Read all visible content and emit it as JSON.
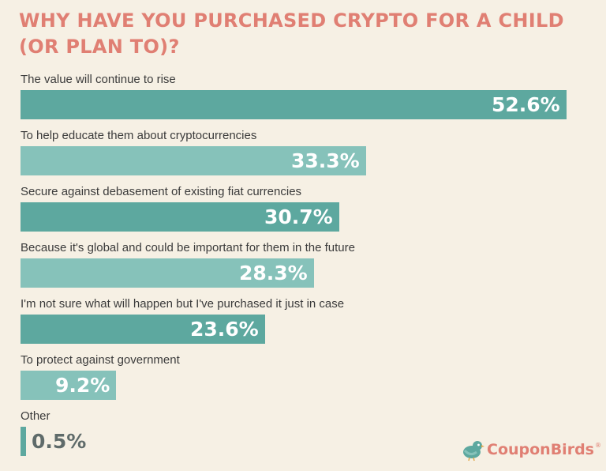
{
  "chart_data": {
    "type": "bar",
    "orientation": "horizontal",
    "title": "WHY HAVE YOU PURCHASED CRYPTO FOR A CHILD (OR PLAN TO)?",
    "categories": [
      "The value will continue to rise",
      "To help educate them about cryptocurrencies",
      "Secure against debasement of existing fiat currencies",
      "Because it's global and could be important for them in the future",
      "I'm not sure what will happen but I've purchased it just in case",
      "To protect against government",
      "Other"
    ],
    "values": [
      52.6,
      33.3,
      30.7,
      28.3,
      23.6,
      9.2,
      0.5
    ],
    "value_labels": [
      "52.6%",
      "33.3%",
      "30.7%",
      "28.3%",
      "23.6%",
      "9.2%",
      "0.5%"
    ],
    "xlim": [
      0,
      52.6
    ],
    "colors": [
      "#5da89f",
      "#86c2ba",
      "#5da89f",
      "#86c2ba",
      "#5da89f",
      "#86c2ba",
      "#5da89f"
    ],
    "grid": false,
    "legend": "none"
  },
  "logo": {
    "text": "CouponBirds",
    "reg_mark": "®",
    "icon": "bird-icon",
    "color": "#e07f73",
    "icon_color": "#5da89f"
  }
}
